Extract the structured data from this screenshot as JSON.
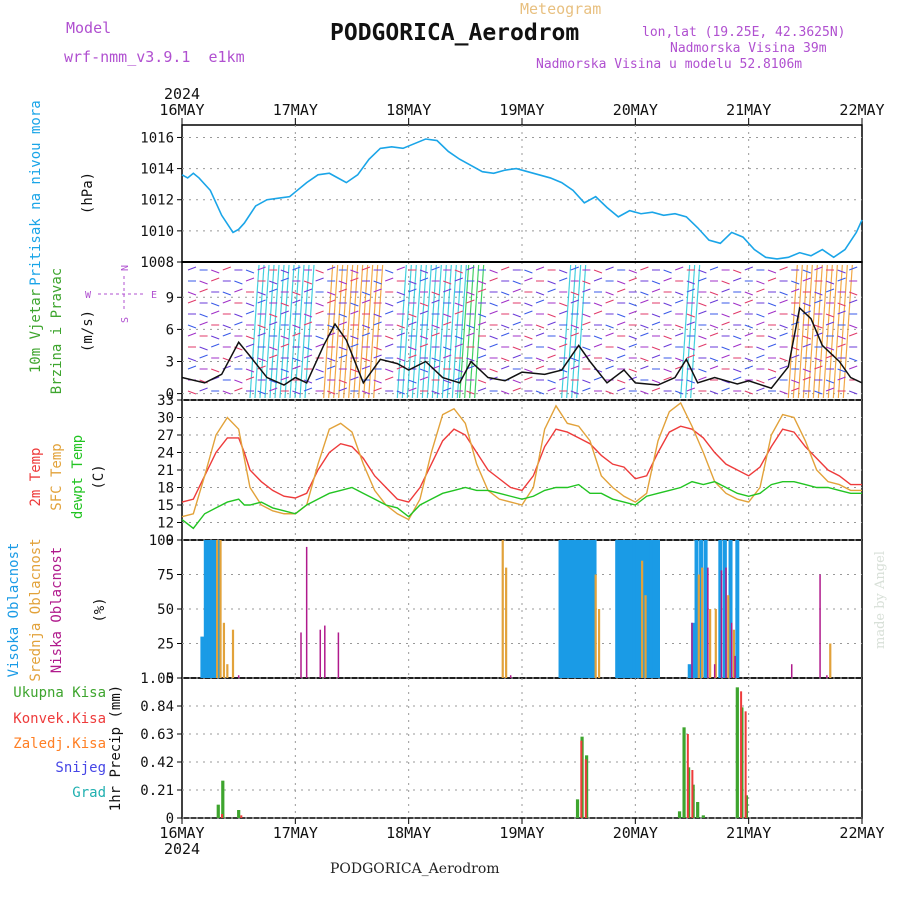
{
  "header": {
    "model_label": "Model",
    "model_name": "wrf-nmm_v3.9.1  e1km",
    "meteogram_label": "Meteogram",
    "station": "PODGORICA_Aerodrom",
    "lonlat": "lon,lat (19.25E, 42.3625N)",
    "elevation": "Nadmorska Visina 39m",
    "model_elevation": "Nadmorska Visina u modelu 52.8106m",
    "footer_station": "PODGORICA_Aerodrom",
    "credit": "made by Angel",
    "year_top": "2024",
    "year_bottom": "2024"
  },
  "colors": {
    "pressure": "#1aa5e8",
    "temp2m": "#ee3b3b",
    "sfc": "#e2a23a",
    "dewpt": "#22c422",
    "high_cloud": "#1a9be6",
    "mid_cloud": "#e2a23a",
    "low_cloud": "#b01a8c",
    "total_precip": "#3ea52e",
    "conv_precip": "#ee3b3b",
    "frz_precip": "#ff7f24",
    "snow": "#4646e6",
    "hail": "#20b0b0",
    "model_text": "#b050d0",
    "meteogram_text": "#e8c080"
  },
  "chart_data": [
    {
      "type": "line",
      "panel": "pressure",
      "ylabel_lines": [
        "Pritisak na nivou mora"
      ],
      "unit": "(hPa)",
      "x_ticks": [
        "16MAY",
        "17MAY",
        "18MAY",
        "19MAY",
        "20MAY",
        "21MAY",
        "22MAY"
      ],
      "ylim": [
        1008,
        1016.8
      ],
      "yticks": [
        1008,
        1010,
        1012,
        1014,
        1016
      ],
      "x_days": [
        0.0,
        0.05,
        0.1,
        0.15,
        0.25,
        0.35,
        0.45,
        0.5,
        0.55,
        0.65,
        0.75,
        0.85,
        0.95,
        1.0,
        1.1,
        1.2,
        1.3,
        1.35,
        1.45,
        1.55,
        1.65,
        1.75,
        1.85,
        1.95,
        2.05,
        2.15,
        2.25,
        2.35,
        2.45,
        2.55,
        2.65,
        2.75,
        2.85,
        2.95,
        3.05,
        3.15,
        3.25,
        3.35,
        3.45,
        3.55,
        3.65,
        3.75,
        3.85,
        3.95,
        4.05,
        4.15,
        4.25,
        4.35,
        4.45,
        4.55,
        4.65,
        4.75,
        4.85,
        4.95,
        5.05,
        5.15,
        5.25,
        5.35,
        5.45,
        5.55,
        5.65,
        5.75,
        5.85,
        5.95,
        6.0
      ],
      "series": [
        {
          "values": [
            1013.6,
            1013.4,
            1013.7,
            1013.4,
            1012.6,
            1011.0,
            1009.9,
            1010.1,
            1010.5,
            1011.6,
            1012.0,
            1012.1,
            1012.2,
            1012.5,
            1013.1,
            1013.6,
            1013.7,
            1013.5,
            1013.1,
            1013.6,
            1014.6,
            1015.3,
            1015.4,
            1015.3,
            1015.6,
            1015.9,
            1015.8,
            1015.1,
            1014.6,
            1014.2,
            1013.8,
            1013.7,
            1013.9,
            1014.0,
            1013.8,
            1013.6,
            1013.4,
            1013.1,
            1012.6,
            1011.8,
            1012.2,
            1011.5,
            1010.9,
            1011.3,
            1011.1,
            1011.2,
            1011.0,
            1011.1,
            1010.9,
            1010.2,
            1009.4,
            1009.2,
            1009.9,
            1009.6,
            1008.8,
            1008.3,
            1008.2,
            1008.3,
            1008.6,
            1008.4,
            1008.8,
            1008.3,
            1008.8,
            1009.9,
            1010.7
          ]
        }
      ]
    },
    {
      "type": "line",
      "panel": "wind",
      "ylabel_lines": [
        "10m Vjetar",
        "Brzina i Pravac"
      ],
      "unit": "(m/s)",
      "compass": {
        "n": "N",
        "s": "S",
        "w": "W",
        "e": "E"
      },
      "ylim": [
        -0.6,
        12.3
      ],
      "yticks": [
        0,
        3,
        6,
        9
      ],
      "x_days": [
        0.0,
        0.2,
        0.35,
        0.5,
        0.6,
        0.75,
        0.9,
        1.0,
        1.1,
        1.25,
        1.35,
        1.45,
        1.6,
        1.75,
        1.9,
        2.0,
        2.15,
        2.3,
        2.45,
        2.55,
        2.7,
        2.85,
        3.0,
        3.2,
        3.35,
        3.5,
        3.6,
        3.75,
        3.9,
        4.0,
        4.2,
        4.35,
        4.45,
        4.55,
        4.7,
        4.9,
        5.0,
        5.2,
        5.35,
        5.45,
        5.55,
        5.65,
        5.8,
        5.9,
        6.0
      ],
      "series": [
        {
          "values": [
            1.5,
            1.0,
            1.8,
            4.8,
            3.5,
            1.5,
            0.8,
            1.5,
            1.0,
            4.5,
            6.5,
            5.0,
            1.0,
            3.2,
            2.8,
            2.2,
            3.0,
            1.5,
            1.0,
            3.0,
            1.5,
            1.2,
            2.0,
            1.8,
            2.2,
            4.5,
            3.0,
            1.0,
            2.2,
            1.0,
            0.8,
            1.5,
            3.2,
            1.0,
            1.5,
            0.9,
            1.2,
            0.5,
            2.5,
            8.0,
            7.0,
            4.5,
            3.0,
            1.5,
            1.0
          ]
        }
      ],
      "wind_bands": [
        {
          "x0": 0.6,
          "x1": 1.1,
          "color": "#22c8d8"
        },
        {
          "x0": 1.25,
          "x1": 1.7,
          "color": "#f09a28"
        },
        {
          "x0": 1.9,
          "x1": 2.45,
          "color": "#22c8d8"
        },
        {
          "x0": 2.45,
          "x1": 2.6,
          "color": "#20c84a"
        },
        {
          "x0": 3.35,
          "x1": 3.5,
          "color": "#22c8d8"
        },
        {
          "x0": 4.4,
          "x1": 4.5,
          "color": "#22c8d8"
        },
        {
          "x0": 5.35,
          "x1": 5.85,
          "color": "#f09a28"
        }
      ]
    },
    {
      "type": "line",
      "panel": "temperature",
      "ylabel_lines": [
        "2m Temp",
        "SFC Temp",
        "dewpt Temp"
      ],
      "unit": "(C)",
      "ylim": [
        9,
        33
      ],
      "yticks": [
        9,
        12,
        15,
        18,
        21,
        24,
        27,
        30,
        33
      ],
      "x_days": [
        0.0,
        0.1,
        0.2,
        0.3,
        0.4,
        0.5,
        0.55,
        0.6,
        0.7,
        0.8,
        0.9,
        1.0,
        1.1,
        1.2,
        1.3,
        1.4,
        1.5,
        1.6,
        1.7,
        1.8,
        1.9,
        2.0,
        2.1,
        2.2,
        2.3,
        2.4,
        2.5,
        2.6,
        2.7,
        2.8,
        2.9,
        3.0,
        3.1,
        3.2,
        3.3,
        3.4,
        3.5,
        3.6,
        3.7,
        3.8,
        3.9,
        4.0,
        4.1,
        4.2,
        4.3,
        4.4,
        4.5,
        4.6,
        4.7,
        4.8,
        4.9,
        5.0,
        5.1,
        5.2,
        5.3,
        5.4,
        5.5,
        5.6,
        5.7,
        5.8,
        5.9,
        6.0
      ],
      "series": [
        {
          "name": "2m Temp",
          "color_key": "temp2m",
          "values": [
            15.5,
            16.0,
            20.0,
            24.0,
            26.5,
            26.5,
            24.0,
            21.0,
            19.0,
            17.5,
            16.5,
            16.2,
            17.0,
            21.0,
            24.0,
            25.5,
            25.0,
            23.0,
            20.0,
            18.0,
            16.0,
            15.5,
            18.0,
            22.0,
            26.0,
            28.0,
            27.0,
            24.0,
            21.0,
            19.5,
            18.0,
            17.5,
            20.0,
            25.0,
            28.0,
            27.5,
            26.5,
            25.5,
            23.5,
            22.0,
            21.5,
            19.5,
            20.0,
            24.0,
            27.5,
            28.5,
            28.0,
            26.5,
            24.0,
            22.0,
            21.0,
            20.0,
            21.5,
            25.0,
            28.0,
            27.5,
            25.0,
            23.0,
            21.0,
            20.0,
            18.5,
            18.5
          ]
        },
        {
          "name": "SFC Temp",
          "color_key": "sfc",
          "values": [
            13.0,
            13.5,
            20.0,
            27.0,
            30.0,
            28.0,
            23.0,
            18.0,
            15.0,
            14.0,
            13.5,
            13.5,
            15.0,
            22.0,
            28.0,
            29.0,
            27.5,
            22.0,
            17.5,
            15.0,
            13.5,
            12.5,
            16.0,
            24.0,
            30.5,
            31.5,
            29.0,
            22.0,
            17.5,
            16.0,
            15.5,
            15.0,
            18.0,
            28.0,
            32.0,
            29.0,
            28.5,
            26.0,
            20.0,
            18.0,
            16.5,
            15.5,
            17.0,
            26.0,
            31.0,
            32.5,
            28.5,
            24.0,
            19.0,
            17.0,
            16.0,
            15.5,
            18.0,
            27.0,
            30.5,
            30.0,
            26.0,
            21.0,
            19.0,
            18.5,
            17.5,
            17.5
          ]
        },
        {
          "name": "dewpt Temp",
          "color_key": "dewpt",
          "values": [
            12.5,
            11.0,
            13.5,
            14.5,
            15.5,
            16.0,
            15.0,
            15.0,
            15.5,
            14.5,
            14.0,
            13.5,
            15.0,
            16.0,
            17.0,
            17.5,
            18.0,
            17.0,
            16.0,
            15.0,
            14.5,
            13.0,
            15.0,
            16.0,
            17.0,
            17.5,
            18.0,
            17.5,
            17.5,
            17.0,
            16.5,
            16.0,
            16.5,
            17.5,
            18.0,
            18.0,
            18.5,
            17.0,
            17.0,
            16.0,
            15.5,
            15.0,
            16.5,
            17.0,
            17.5,
            18.0,
            19.0,
            18.5,
            19.0,
            18.0,
            17.0,
            16.5,
            17.0,
            18.5,
            19.0,
            19.0,
            18.5,
            18.0,
            18.0,
            17.5,
            17.0,
            17.0
          ]
        }
      ]
    },
    {
      "type": "bar",
      "panel": "clouds",
      "ylabel_lines": [
        "Visoka Oblacnost",
        "Srednja Oblacnost",
        "Niska Oblacnost"
      ],
      "unit": "(%)",
      "ylim": [
        0,
        100
      ],
      "yticks": [
        0,
        25,
        50,
        75,
        100
      ],
      "series": [
        {
          "name": "Visoka Oblacnost",
          "color_key": "high_cloud",
          "x_days": [
            0.18,
            0.21,
            0.24,
            0.27,
            0.3,
            0.33,
            3.34,
            3.37,
            3.4,
            3.43,
            3.46,
            3.49,
            3.52,
            3.55,
            3.58,
            3.61,
            3.64,
            3.84,
            3.87,
            3.9,
            3.93,
            3.96,
            3.99,
            4.02,
            4.05,
            4.08,
            4.11,
            4.14,
            4.17,
            4.2,
            4.48,
            4.51,
            4.54,
            4.58,
            4.62,
            4.75,
            4.79,
            4.84,
            4.9
          ],
          "values": [
            30,
            100,
            100,
            100,
            100,
            100,
            100,
            100,
            100,
            100,
            100,
            100,
            100,
            100,
            100,
            100,
            100,
            100,
            100,
            100,
            100,
            100,
            100,
            100,
            100,
            100,
            100,
            100,
            100,
            100,
            10,
            40,
            100,
            100,
            100,
            100,
            100,
            100,
            100
          ]
        },
        {
          "name": "Srednja Oblacnost",
          "color_key": "mid_cloud",
          "x_days": [
            0.31,
            0.34,
            0.37,
            0.4,
            0.45,
            2.83,
            2.86,
            3.65,
            3.68,
            4.06,
            4.09,
            4.56,
            4.59,
            4.66,
            4.71,
            4.82,
            4.87,
            5.72
          ],
          "values": [
            100,
            100,
            40,
            10,
            35,
            100,
            80,
            75,
            50,
            85,
            60,
            75,
            80,
            50,
            50,
            60,
            35,
            25
          ]
        },
        {
          "name": "Niska Oblacnost",
          "color_key": "low_cloud",
          "x_days": [
            0.5,
            1.05,
            1.1,
            1.22,
            1.26,
            1.38,
            2.9,
            4.5,
            4.64,
            4.7,
            4.76,
            4.8,
            4.85,
            4.88,
            5.38,
            5.63,
            5.69
          ],
          "values": [
            2,
            33,
            95,
            35,
            38,
            33,
            2,
            40,
            80,
            10,
            78,
            80,
            40,
            16,
            10,
            75,
            2
          ]
        }
      ]
    },
    {
      "type": "bar",
      "panel": "precipitation",
      "ylabel_lines": [
        "1hr Precip"
      ],
      "unit": "(mm)",
      "legend": [
        "Ukupna Kisa",
        "Konvek.Kisa",
        "Zaledj.Kisa",
        "Snijeg",
        "Grad"
      ],
      "ylim": [
        0,
        1.05
      ],
      "yticks": [
        0,
        0.21,
        0.42,
        0.63,
        0.84,
        1.05
      ],
      "x_ticks_bottom": [
        "16MAY",
        "17MAY",
        "18MAY",
        "19MAY",
        "20MAY",
        "21MAY",
        "22MAY"
      ],
      "series": [
        {
          "name": "Ukupna Kisa",
          "color_key": "total_precip",
          "x_days": [
            0.32,
            0.36,
            0.5,
            3.49,
            3.53,
            3.57,
            4.39,
            4.43,
            4.47,
            4.51,
            4.55,
            4.6,
            4.9,
            4.94,
            4.98
          ],
          "values": [
            0.1,
            0.28,
            0.06,
            0.14,
            0.61,
            0.47,
            0.05,
            0.68,
            0.38,
            0.25,
            0.12,
            0.02,
            0.98,
            0.83,
            0.17
          ]
        },
        {
          "name": "Konvek.Kisa",
          "color_key": "conv_precip",
          "x_days": [
            0.34,
            0.51,
            3.51,
            3.55,
            4.45,
            4.49,
            4.92,
            4.96
          ],
          "values": [
            0.03,
            0.02,
            0.58,
            0.44,
            0.63,
            0.36,
            0.95,
            0.8
          ]
        }
      ]
    }
  ]
}
